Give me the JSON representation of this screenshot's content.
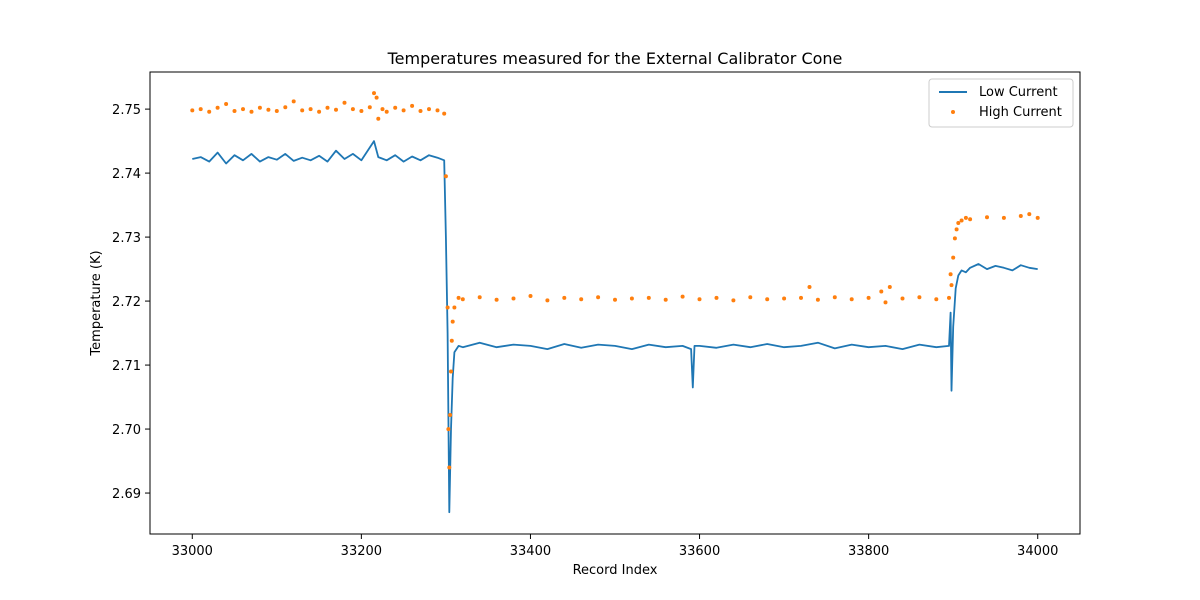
{
  "chart_data": {
    "type": "line",
    "title": "Temperatures measured for the External Calibrator Cone",
    "xlabel": "Record Index",
    "ylabel": "Temperature (K)",
    "xlim": [
      32950,
      34050
    ],
    "ylim": [
      2.6836,
      2.7558
    ],
    "x_ticks": [
      33000,
      33200,
      33400,
      33600,
      33800,
      34000
    ],
    "y_ticks": [
      2.69,
      2.7,
      2.71,
      2.72,
      2.73,
      2.74,
      2.75
    ],
    "y_tick_labels": [
      "2.69",
      "2.70",
      "2.71",
      "2.72",
      "2.73",
      "2.74",
      "2.75"
    ],
    "grid": false,
    "legend_position": "top-right",
    "series": [
      {
        "name": "Low Current",
        "style": "line",
        "color": "#1f77b4",
        "x": [
          33000,
          33010,
          33020,
          33030,
          33040,
          33050,
          33060,
          33070,
          33080,
          33090,
          33100,
          33110,
          33120,
          33130,
          33140,
          33150,
          33160,
          33170,
          33180,
          33190,
          33200,
          33210,
          33215,
          33220,
          33230,
          33240,
          33250,
          33260,
          33270,
          33280,
          33290,
          33298,
          33300,
          33302,
          33304,
          33306,
          33308,
          33310,
          33315,
          33320,
          33340,
          33360,
          33380,
          33400,
          33420,
          33440,
          33460,
          33480,
          33500,
          33520,
          33540,
          33560,
          33580,
          33590,
          33592,
          33594,
          33600,
          33620,
          33640,
          33660,
          33680,
          33700,
          33720,
          33740,
          33760,
          33780,
          33800,
          33820,
          33840,
          33860,
          33880,
          33895,
          33897,
          33898,
          33900,
          33903,
          33906,
          33910,
          33915,
          33920,
          33930,
          33940,
          33950,
          33960,
          33970,
          33980,
          33990,
          34000
        ],
        "values": [
          2.7422,
          2.7425,
          2.7418,
          2.7432,
          2.7415,
          2.7428,
          2.742,
          2.743,
          2.7418,
          2.7425,
          2.7421,
          2.743,
          2.7419,
          2.7424,
          2.742,
          2.7427,
          2.7418,
          2.7435,
          2.7422,
          2.743,
          2.742,
          2.744,
          2.745,
          2.7425,
          2.742,
          2.7428,
          2.7418,
          2.7426,
          2.742,
          2.7428,
          2.7424,
          2.742,
          2.73,
          2.715,
          2.687,
          2.7,
          2.708,
          2.712,
          2.713,
          2.7128,
          2.7135,
          2.7128,
          2.7132,
          2.713,
          2.7125,
          2.7133,
          2.7127,
          2.7132,
          2.713,
          2.7125,
          2.7132,
          2.7128,
          2.713,
          2.7125,
          2.7065,
          2.713,
          2.713,
          2.7127,
          2.7132,
          2.7128,
          2.7133,
          2.7128,
          2.713,
          2.7135,
          2.7126,
          2.7132,
          2.7128,
          2.713,
          2.7125,
          2.7132,
          2.7128,
          2.713,
          2.7182,
          2.706,
          2.716,
          2.722,
          2.724,
          2.7248,
          2.7245,
          2.7252,
          2.7258,
          2.725,
          2.7255,
          2.7252,
          2.7248,
          2.7256,
          2.7252,
          2.725
        ]
      },
      {
        "name": "High Current",
        "style": "scatter",
        "color": "#ff7f0e",
        "x": [
          33000,
          33010,
          33020,
          33030,
          33040,
          33050,
          33060,
          33070,
          33080,
          33090,
          33100,
          33110,
          33120,
          33130,
          33140,
          33150,
          33160,
          33170,
          33180,
          33190,
          33200,
          33210,
          33215,
          33218,
          33220,
          33225,
          33230,
          33240,
          33250,
          33260,
          33270,
          33280,
          33290,
          33298,
          33300,
          33302,
          33303,
          33304,
          33305,
          33306,
          33307,
          33308,
          33310,
          33315,
          33320,
          33340,
          33360,
          33380,
          33400,
          33420,
          33440,
          33460,
          33480,
          33500,
          33520,
          33540,
          33560,
          33580,
          33600,
          33620,
          33640,
          33660,
          33680,
          33700,
          33720,
          33730,
          33740,
          33760,
          33780,
          33800,
          33815,
          33820,
          33825,
          33840,
          33860,
          33880,
          33895,
          33897,
          33898,
          33900,
          33902,
          33904,
          33906,
          33910,
          33915,
          33920,
          33940,
          33960,
          33980,
          33990,
          34000
        ],
        "values": [
          2.7498,
          2.75,
          2.7496,
          2.7502,
          2.7508,
          2.7497,
          2.75,
          2.7496,
          2.7502,
          2.7499,
          2.7497,
          2.7503,
          2.7512,
          2.7498,
          2.75,
          2.7496,
          2.7502,
          2.7499,
          2.751,
          2.75,
          2.7497,
          2.7503,
          2.7525,
          2.7518,
          2.7485,
          2.75,
          2.7496,
          2.7502,
          2.7498,
          2.7505,
          2.7497,
          2.75,
          2.7498,
          2.7493,
          2.7395,
          2.719,
          2.7,
          2.694,
          2.7022,
          2.709,
          2.7138,
          2.7168,
          2.719,
          2.7205,
          2.7203,
          2.7206,
          2.7202,
          2.7204,
          2.7208,
          2.7201,
          2.7205,
          2.7203,
          2.7206,
          2.7202,
          2.7204,
          2.7205,
          2.7202,
          2.7207,
          2.7203,
          2.7205,
          2.7201,
          2.7206,
          2.7203,
          2.7204,
          2.7205,
          2.7222,
          2.7202,
          2.7206,
          2.7203,
          2.7205,
          2.7215,
          2.7198,
          2.7222,
          2.7204,
          2.7206,
          2.7203,
          2.7205,
          2.7242,
          2.7225,
          2.7268,
          2.7298,
          2.7312,
          2.7322,
          2.7326,
          2.733,
          2.7328,
          2.7331,
          2.733,
          2.7333,
          2.7336,
          2.733
        ]
      }
    ]
  }
}
